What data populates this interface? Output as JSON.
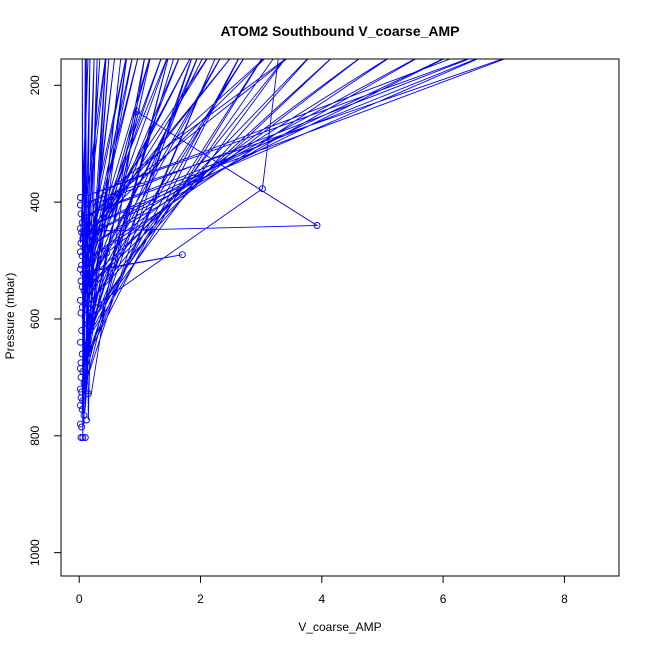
{
  "chart_data": {
    "type": "line",
    "title": "ATOM2 Southbound V_coarse_AMP",
    "xlabel": "V_coarse_AMP",
    "ylabel": "Pressure (mbar)",
    "xlim": [
      -0.3,
      8.9
    ],
    "ylim": [
      1040,
      155
    ],
    "y_reversed": true,
    "x_ticks": [
      0,
      2,
      4,
      6,
      8
    ],
    "y_ticks": [
      200,
      400,
      600,
      800,
      1000
    ],
    "x_tick_labels": [
      "0",
      "2",
      "4",
      "6",
      "8"
    ],
    "y_tick_labels": [
      "200",
      "400",
      "600",
      "800",
      "1000"
    ],
    "grid": false,
    "legend": "none",
    "series_color": "#0000ff",
    "points": [
      [
        6.5,
        140
      ],
      [
        0.05,
        392
      ],
      [
        6.8,
        140
      ],
      [
        0.08,
        410
      ],
      [
        3.6,
        140
      ],
      [
        0.1,
        430
      ],
      [
        3.2,
        140
      ],
      [
        0.12,
        455
      ],
      [
        2.6,
        140
      ],
      [
        0.06,
        470
      ],
      [
        2.2,
        140
      ],
      [
        0.15,
        480
      ],
      [
        1.9,
        140
      ],
      [
        0.1,
        500
      ],
      [
        1.5,
        140
      ],
      [
        0.2,
        520
      ],
      [
        1.2,
        140
      ],
      [
        0.05,
        540
      ],
      [
        0.9,
        140
      ],
      [
        0.12,
        560
      ],
      [
        0.6,
        140
      ],
      [
        0.08,
        580
      ],
      [
        0.35,
        140
      ],
      [
        0.05,
        600
      ],
      [
        0.95,
        245
      ],
      [
        3.92,
        440
      ],
      [
        0.05,
        450
      ],
      [
        0.15,
        140
      ],
      [
        0.02,
        470
      ],
      [
        0.45,
        140
      ],
      [
        0.08,
        490
      ],
      [
        0.8,
        140
      ],
      [
        0.1,
        505
      ],
      [
        1.0,
        140
      ],
      [
        0.12,
        520
      ],
      [
        1.7,
        490
      ],
      [
        0.05,
        520
      ],
      [
        1.4,
        140
      ],
      [
        0.1,
        530
      ],
      [
        1.7,
        140
      ],
      [
        0.15,
        545
      ],
      [
        2.1,
        140
      ],
      [
        0.05,
        560
      ],
      [
        2.4,
        140
      ],
      [
        0.08,
        575
      ],
      [
        2.8,
        140
      ],
      [
        0.1,
        590
      ],
      [
        3.02,
        377
      ],
      [
        3.3,
        140
      ],
      [
        0.05,
        620
      ],
      [
        2.0,
        140
      ],
      [
        0.12,
        640
      ],
      [
        1.6,
        140
      ],
      [
        0.08,
        660
      ],
      [
        1.2,
        140
      ],
      [
        0.05,
        680
      ],
      [
        0.8,
        140
      ],
      [
        0.1,
        700
      ],
      [
        0.5,
        140
      ],
      [
        0.05,
        720
      ],
      [
        0.25,
        140
      ],
      [
        0.1,
        740
      ],
      [
        0.18,
        140
      ],
      [
        0.05,
        760
      ],
      [
        0.12,
        140
      ],
      [
        0.08,
        780
      ],
      [
        0.05,
        140
      ],
      [
        0.06,
        803
      ],
      [
        0.1,
        140
      ],
      [
        0.15,
        773
      ],
      [
        0.3,
        140
      ],
      [
        0.1,
        752
      ],
      [
        0.45,
        140
      ],
      [
        0.05,
        740
      ],
      [
        0.7,
        140
      ],
      [
        0.08,
        728
      ],
      [
        0.2,
        728
      ],
      [
        1.1,
        140
      ],
      [
        0.05,
        718
      ],
      [
        1.5,
        140
      ],
      [
        0.12,
        705
      ],
      [
        1.9,
        140
      ],
      [
        0.05,
        690
      ],
      [
        2.3,
        140
      ],
      [
        0.1,
        670
      ],
      [
        2.7,
        140
      ],
      [
        0.05,
        650
      ],
      [
        3.1,
        140
      ],
      [
        0.2,
        605
      ],
      [
        3.5,
        140
      ],
      [
        0.1,
        580
      ],
      [
        3.9,
        140
      ],
      [
        0.05,
        555
      ],
      [
        4.3,
        140
      ],
      [
        0.12,
        535
      ],
      [
        0.45,
        487
      ],
      [
        4.8,
        140
      ],
      [
        0.05,
        505
      ],
      [
        5.3,
        140
      ],
      [
        0.08,
        480
      ],
      [
        5.8,
        140
      ],
      [
        0.05,
        462
      ],
      [
        6.3,
        140
      ],
      [
        0.1,
        445
      ],
      [
        6.9,
        140
      ],
      [
        0.05,
        425
      ],
      [
        7.4,
        140
      ],
      [
        0.08,
        402
      ]
    ],
    "markers": [
      [
        0.02,
        392
      ],
      [
        0.02,
        405
      ],
      [
        0.03,
        420
      ],
      [
        0.05,
        435
      ],
      [
        0.02,
        445
      ],
      [
        0.04,
        452
      ],
      [
        0.06,
        462
      ],
      [
        0.03,
        470
      ],
      [
        0.08,
        478
      ],
      [
        0.02,
        485
      ],
      [
        0.05,
        492
      ],
      [
        0.1,
        500
      ],
      [
        0.04,
        508
      ],
      [
        0.02,
        515
      ],
      [
        0.07,
        522
      ],
      [
        0.15,
        528
      ],
      [
        0.03,
        535
      ],
      [
        0.2,
        535
      ],
      [
        0.05,
        545
      ],
      [
        0.08,
        552
      ],
      [
        0.02,
        568
      ],
      [
        0.05,
        580
      ],
      [
        0.03,
        590
      ],
      [
        0.2,
        605
      ],
      [
        0.04,
        620
      ],
      [
        0.02,
        640
      ],
      [
        0.05,
        660
      ],
      [
        0.03,
        675
      ],
      [
        0.02,
        685
      ],
      [
        0.06,
        690
      ],
      [
        0.03,
        700
      ],
      [
        0.08,
        710
      ],
      [
        0.02,
        720
      ],
      [
        0.04,
        725
      ],
      [
        0.15,
        728
      ],
      [
        0.03,
        735
      ],
      [
        0.06,
        740
      ],
      [
        0.02,
        748
      ],
      [
        0.05,
        755
      ],
      [
        0.08,
        765
      ],
      [
        0.12,
        773
      ],
      [
        0.02,
        780
      ],
      [
        0.04,
        785
      ],
      [
        0.03,
        803
      ],
      [
        0.06,
        803
      ],
      [
        0.1,
        803
      ],
      [
        0.95,
        245
      ],
      [
        3.02,
        377
      ],
      [
        3.92,
        440
      ],
      [
        1.7,
        490
      ],
      [
        0.45,
        487
      ]
    ]
  }
}
